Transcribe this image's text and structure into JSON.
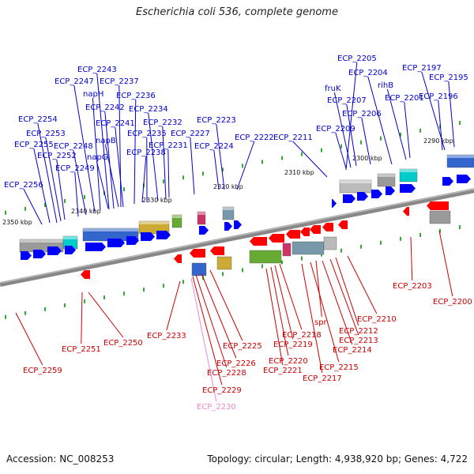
{
  "title": "Escherichia coli 536, complete genome",
  "footer": {
    "accession": "Accession: NC_008253",
    "summary": "Topology: circular; Length: 4,938,920 bp; Genes: 4,722"
  },
  "colors": {
    "top_label": "#0000cc",
    "bottom_label": "#cc0000",
    "faded_label": "#ee88cc",
    "forward_gene": "#0000ff",
    "reverse_gene": "#ff0000",
    "axis": "#888888",
    "tick": "#33aa33"
  },
  "kbp_marks": [
    "2350 kbp",
    "2340 kbp",
    "2330 kbp",
    "2320 kbp",
    "2310 kbp",
    "2300 kbp",
    "2290 kbp"
  ],
  "top_labels": [
    "ECP_2205",
    "ECP_2197",
    "ECP_2204",
    "ECP_2195",
    "ECP_2243",
    "fruK",
    "rihB",
    "ECP_2247",
    "ECP_2237",
    "ECP_2201",
    "ECP_2196",
    "napH",
    "ECP_2236",
    "ECP_2207",
    "ECP_2242",
    "ECP_2234",
    "ECP_2206",
    "ECP_2254",
    "ECP_2241",
    "ECP_2232",
    "ECP_2223",
    "ECP_2253",
    "ECP_2235",
    "ECP_2227",
    "ECP_2209",
    "napB",
    "ECP_2222",
    "ECP_2211",
    "ECP_2255",
    "ECP_2248",
    "ECP_2231",
    "ECP_2224",
    "ECP_2238",
    "ECP_2252",
    "napG",
    "ECP_2249",
    "ECP_2256"
  ],
  "bottom_labels": [
    "ECP_2203",
    "ECP_2200",
    "ECP_2210",
    "spr",
    "ECP_2212",
    "ECP_2218",
    "ECP_2213",
    "ECP_2233",
    "ECP_2250",
    "ECP_2219",
    "ECP_2214",
    "ECP_2251",
    "ECP_2225",
    "ECP_2220",
    "ECP_2226",
    "ECP_2215",
    "ECP_2259",
    "ECP_2221",
    "ECP_2228",
    "ECP_2217",
    "ECP_2229",
    "ECP_2230"
  ]
}
